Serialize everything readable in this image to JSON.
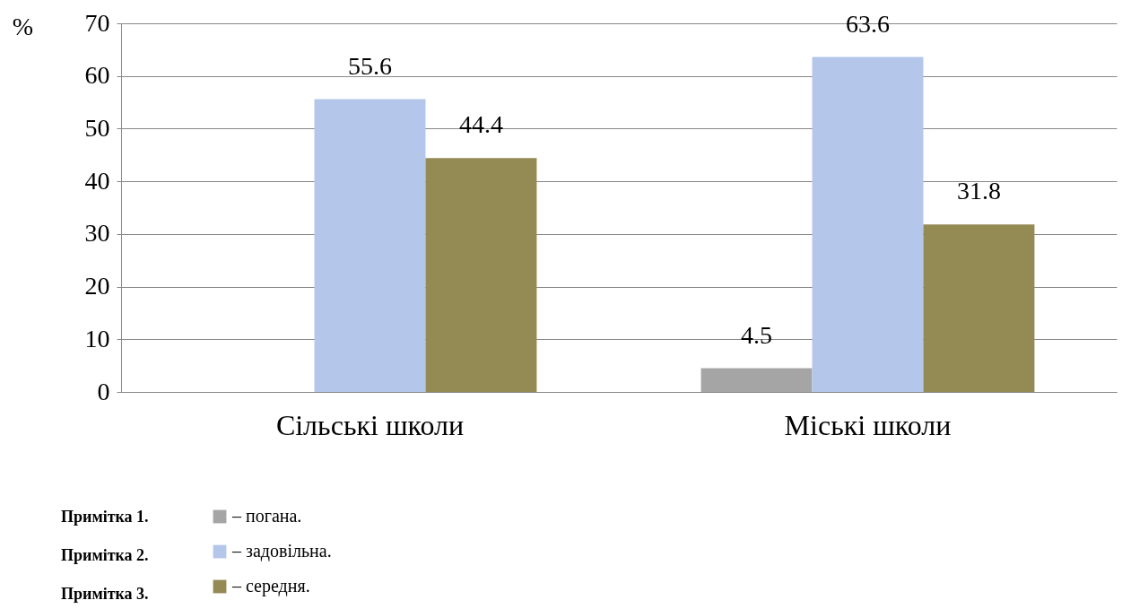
{
  "chart_data": {
    "type": "bar",
    "ylabel": "%",
    "categories": [
      "Сільські школи",
      "Міські школи"
    ],
    "series": [
      {
        "name": "– погана.",
        "color": "#a5a5a5",
        "values": [
          null,
          4.5
        ]
      },
      {
        "name": "– задовільна.",
        "color": "#b4c7ea",
        "values": [
          55.6,
          63.6
        ]
      },
      {
        "name": "– середня.",
        "color": "#948a54",
        "values": [
          44.4,
          31.8
        ]
      }
    ],
    "ylim": [
      0,
      70
    ],
    "yticks": [
      0,
      10,
      20,
      30,
      40,
      50,
      60,
      70
    ],
    "grid": "y",
    "data_labels": true,
    "legend": "bottom left",
    "annotations": [
      "Примітка 1.",
      "Примітка 2.",
      "Примітка 3."
    ]
  }
}
